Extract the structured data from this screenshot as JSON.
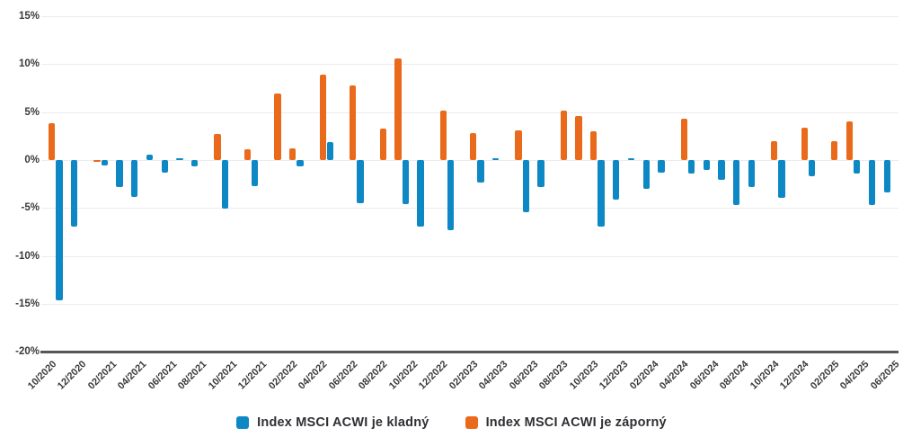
{
  "chart_data": {
    "type": "bar",
    "title": "",
    "xlabel": "",
    "ylabel": "",
    "unit": "%",
    "grid": "horizontal",
    "legend_position": "bottom",
    "ylim": [
      -20,
      15
    ],
    "yticks": [
      15,
      10,
      5,
      0,
      -5,
      -10,
      -15,
      -20
    ],
    "ytick_labels": [
      "15%",
      "10%",
      "5%",
      "0%",
      "-5%",
      "-10%",
      "-15%",
      "-20%"
    ],
    "xtick_every": 2,
    "categories": [
      "10/2020",
      "11/2020",
      "12/2020",
      "01/2021",
      "02/2021",
      "03/2021",
      "04/2021",
      "05/2021",
      "06/2021",
      "07/2021",
      "08/2021",
      "09/2021",
      "10/2021",
      "11/2021",
      "12/2021",
      "01/2022",
      "02/2022",
      "03/2022",
      "04/2022",
      "05/2022",
      "06/2022",
      "07/2022",
      "08/2022",
      "09/2022",
      "10/2022",
      "11/2022",
      "12/2022",
      "01/2023",
      "02/2023",
      "03/2023",
      "04/2023",
      "05/2023",
      "06/2023",
      "07/2023",
      "08/2023",
      "09/2023",
      "10/2023",
      "11/2023",
      "12/2023",
      "01/2024",
      "02/2024",
      "03/2024",
      "04/2024",
      "05/2024",
      "06/2024",
      "07/2024",
      "08/2024",
      "09/2024",
      "10/2024",
      "11/2024",
      "12/2024",
      "01/2025",
      "02/2025",
      "03/2025",
      "04/2025",
      "05/2025",
      "06/2025"
    ],
    "series": [
      {
        "name": "Index MSCI ACWI je kladný",
        "color": "#0D88C5",
        "values": [
          null,
          -14.6,
          -6.9,
          null,
          -0.6,
          -2.8,
          -3.8,
          0.6,
          -1.3,
          0.2,
          -0.7,
          null,
          -5.1,
          null,
          -2.7,
          null,
          null,
          -0.7,
          null,
          1.9,
          null,
          -4.5,
          null,
          null,
          -4.6,
          -6.9,
          null,
          -7.3,
          null,
          -2.3,
          0.2,
          null,
          -5.4,
          -2.8,
          null,
          null,
          null,
          -6.9,
          -4.1,
          0.2,
          -3.0,
          -1.3,
          null,
          -1.4,
          -1.0,
          -2.1,
          -4.7,
          -2.8,
          null,
          -3.9,
          null,
          -1.7,
          null,
          null,
          -1.4,
          -4.7,
          -3.4
        ]
      },
      {
        "name": "Index MSCI ACWI je záporný",
        "color": "#EA6A1C",
        "values": [
          3.8,
          null,
          null,
          -0.2,
          null,
          null,
          null,
          null,
          null,
          null,
          null,
          2.7,
          null,
          1.1,
          null,
          6.9,
          1.2,
          null,
          8.9,
          null,
          7.8,
          null,
          3.3,
          10.6,
          null,
          null,
          5.2,
          null,
          2.8,
          null,
          null,
          3.1,
          null,
          null,
          5.2,
          4.6,
          3.0,
          null,
          null,
          null,
          null,
          null,
          4.3,
          null,
          null,
          null,
          null,
          null,
          2.0,
          null,
          3.4,
          null,
          2.0,
          4.0,
          null,
          null,
          null
        ]
      }
    ]
  },
  "legend": {
    "items": [
      {
        "label": "Index MSCI ACWI je kladný",
        "color": "#0D88C5"
      },
      {
        "label": "Index MSCI ACWI je záporný",
        "color": "#EA6A1C"
      }
    ]
  },
  "colors": {
    "background": "#FFFFFF",
    "gridline": "#ECECEC",
    "axis_line": "#55565A",
    "label_text": "#393A3C",
    "series_positive_blue": "#0D88C5",
    "series_negative_orange": "#EA6A1C"
  }
}
